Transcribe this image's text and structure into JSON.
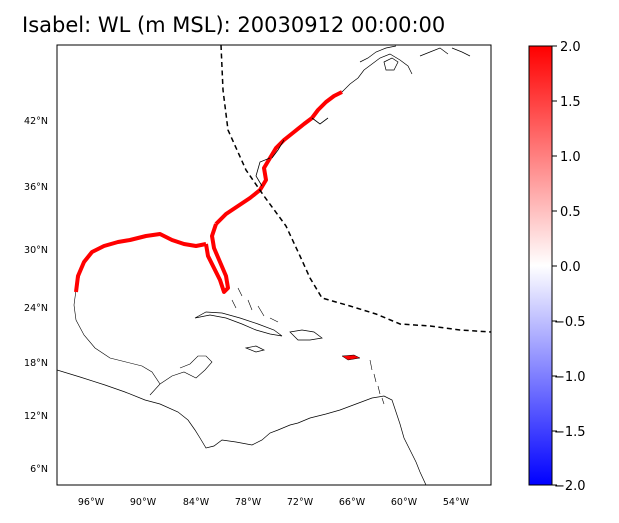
{
  "title": "Isabel: WL (m MSL): 20030912 00:00:00",
  "map": {
    "lon_labels": [
      "96°W",
      "90°W",
      "84°W",
      "78°W",
      "72°W",
      "66°W",
      "60°W",
      "54°W"
    ],
    "lat_labels": [
      "42°N",
      "36°N",
      "30°N",
      "24°N",
      "18°N",
      "12°N",
      "6°N"
    ],
    "lon_range": [
      -100.0,
      -50.0
    ],
    "lat_range": [
      4.0,
      50.0
    ],
    "track_style": "dashed",
    "land_fill": "none"
  },
  "colorbar": {
    "cmap": "bwr",
    "vmin": -2.0,
    "vmax": 2.0,
    "ticks": [
      "2.0",
      "1.5",
      "1.0",
      "0.5",
      "0.0",
      "−0.5",
      "−1.0",
      "−1.5",
      "−2.0"
    ],
    "colors": {
      "high": "#ff0000",
      "mid": "#ffffff",
      "low": "#0000ff"
    }
  }
}
